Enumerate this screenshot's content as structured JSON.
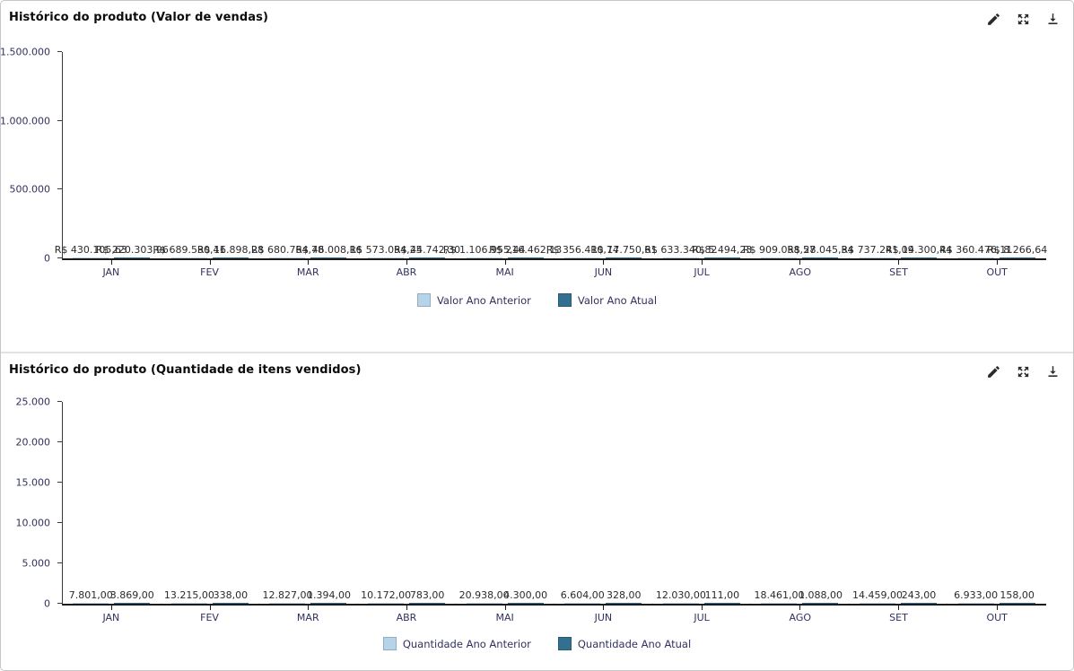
{
  "page": {
    "toolbar_icons": [
      "edit-icon",
      "maximize-icon",
      "download-icon"
    ],
    "accent_colors": {
      "series_previous_year": "#b5d3e9",
      "series_current_year": "#336f8e",
      "axis_text": "#31315e",
      "gridline": "#e4e4e4"
    }
  },
  "chart_data": [
    {
      "type": "bar",
      "title": "Histórico do produto (Valor de vendas)",
      "categories": [
        "JAN",
        "FEV",
        "MAR",
        "ABR",
        "MAI",
        "JUN",
        "JUL",
        "AGO",
        "SET",
        "OUT"
      ],
      "series": [
        {
          "name": "Valor Ano Anterior",
          "color": "#b5d3e9",
          "values": [
            430105.63,
            689530.41,
            680764.78,
            573054.25,
            1106955.44,
            356410.74,
            633340.82,
            909058.57,
            737241.09,
            360476.11
          ],
          "labels": [
            "R$ 430.105,63",
            "R$ 689.530,41",
            "R$ 680.764,78",
            "R$ 573.054,25",
            "R$ 1.106.955,44",
            "R$ 356.410,74",
            "R$ 633.340,82",
            "R$ 909.058,57",
            "R$ 737.241,09",
            "R$ 360.476,11"
          ]
        },
        {
          "name": "Valor Ano Atual",
          "color": "#336f8e",
          "values": [
            220303.96,
            16898.28,
            46008.16,
            44742.3,
            216462.13,
            17750.61,
            5494.23,
            28045.34,
            14300.44,
            8266.64
          ],
          "labels": [
            "R$ 220.303,96",
            "R$ 16.898,28",
            "R$ 46.008,16",
            "R$ 44.742,30",
            "R$ 216.462,13",
            "R$ 17.750,61",
            "R$ 5.494,23",
            "R$ 28.045,34",
            "R$ 14.300,44",
            "R$ 8.266,64"
          ]
        }
      ],
      "xlabel": "",
      "ylabel": "",
      "ylim": [
        0,
        1500000
      ],
      "yticks": [
        {
          "value": 0,
          "label": "0"
        },
        {
          "value": 500000,
          "label": "500.000"
        },
        {
          "value": 1000000,
          "label": "1.000.000"
        },
        {
          "value": 1500000,
          "label": "1.500.000"
        }
      ],
      "grid": "vertical-light",
      "legend_position": "bottom-center"
    },
    {
      "type": "bar",
      "title": "Histórico do produto (Quantidade de itens vendidos)",
      "categories": [
        "JAN",
        "FEV",
        "MAR",
        "ABR",
        "MAI",
        "JUN",
        "JUL",
        "AGO",
        "SET",
        "OUT"
      ],
      "series": [
        {
          "name": "Quantidade Ano Anterior",
          "color": "#b5d3e9",
          "values": [
            7801,
            13215,
            12827,
            10172,
            20938,
            6604,
            12030,
            18461,
            14459,
            6933
          ],
          "labels": [
            "7.801,00",
            "13.215,00",
            "12.827,00",
            "10.172,00",
            "20.938,00",
            "6.604,00",
            "12.030,00",
            "18.461,00",
            "14.459,00",
            "6.933,00"
          ]
        },
        {
          "name": "Quantidade Ano Atual",
          "color": "#336f8e",
          "values": [
            3869,
            338,
            1394,
            783,
            4300,
            328,
            111,
            1088,
            243,
            158
          ],
          "labels": [
            "3.869,00",
            "338,00",
            "1.394,00",
            "783,00",
            "4.300,00",
            "328,00",
            "111,00",
            "1.088,00",
            "243,00",
            "158,00"
          ]
        }
      ],
      "xlabel": "",
      "ylabel": "",
      "ylim": [
        0,
        25000
      ],
      "yticks": [
        {
          "value": 0,
          "label": "0"
        },
        {
          "value": 5000,
          "label": "5.000"
        },
        {
          "value": 10000,
          "label": "10.000"
        },
        {
          "value": 15000,
          "label": "15.000"
        },
        {
          "value": 20000,
          "label": "20.000"
        },
        {
          "value": 25000,
          "label": "25.000"
        }
      ],
      "grid": "vertical-light",
      "legend_position": "bottom-center"
    }
  ]
}
